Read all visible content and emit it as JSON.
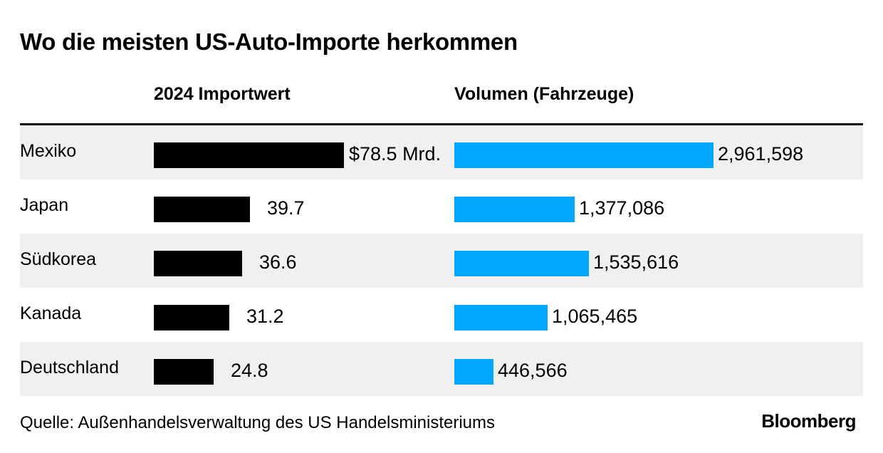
{
  "title": "Wo die meisten US-Auto-Importe herkommen",
  "source": "Quelle: Außenhandelsverwaltung des US Handelsministeriums",
  "logo": "Bloomberg",
  "colors": {
    "import_bar": "#000000",
    "volume_bar": "#00a8ff",
    "row_shade": "#f0f0f0"
  },
  "chart_data": {
    "type": "bar",
    "categories": [
      "Mexiko",
      "Japan",
      "Südkorea",
      "Kanada",
      "Deutschland"
    ],
    "series": [
      {
        "name": "2024 Importwert",
        "values": [
          78.5,
          39.7,
          36.6,
          31.2,
          24.8
        ],
        "labels": [
          "$78.5 Mrd.",
          "39.7",
          "36.6",
          "31.2",
          "24.8"
        ]
      },
      {
        "name": "Volumen (Fahrzeuge)",
        "values": [
          2961598,
          1377086,
          1535616,
          1065465,
          446566
        ],
        "labels": [
          "2,961,598",
          "1,377,086",
          "1,535,616",
          "1,065,465",
          "446,566"
        ]
      }
    ]
  }
}
